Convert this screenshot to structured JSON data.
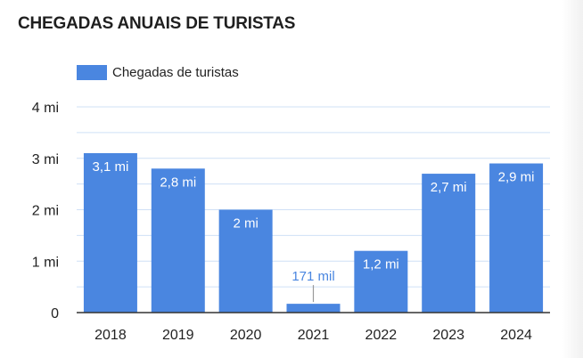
{
  "title": "CHEGADAS ANUAIS DE TURISTAS",
  "colors": {
    "bar": "#4a86e0",
    "gridline": "#cfe0f6",
    "axis": "#333333",
    "label_inside": "#ffffff",
    "label_outside": "#4a86e0",
    "leader": "#9a9a9a"
  },
  "chart_data": {
    "type": "bar",
    "title": "CHEGADAS ANUAIS DE TURISTAS",
    "categories": [
      "2018",
      "2019",
      "2020",
      "2021",
      "2022",
      "2023",
      "2024"
    ],
    "series": [
      {
        "name": "Chegadas de turistas",
        "values": [
          3.1,
          2.8,
          2.0,
          0.171,
          1.2,
          2.7,
          2.9
        ],
        "data_labels": [
          "3,1 mi",
          "2,8 mi",
          "2 mi",
          "171 mil",
          "1,2 mi",
          "2,7 mi",
          "2,9 mi"
        ]
      }
    ],
    "ylim": [
      0,
      4
    ],
    "y_ticks": [
      0,
      1,
      2,
      3,
      4
    ],
    "y_tick_labels": [
      "0",
      "1 mi",
      "2 mi",
      "3 mi",
      "4 mi"
    ],
    "xlabel": "",
    "ylabel": "",
    "grid": true,
    "legend_position": "top-left"
  }
}
